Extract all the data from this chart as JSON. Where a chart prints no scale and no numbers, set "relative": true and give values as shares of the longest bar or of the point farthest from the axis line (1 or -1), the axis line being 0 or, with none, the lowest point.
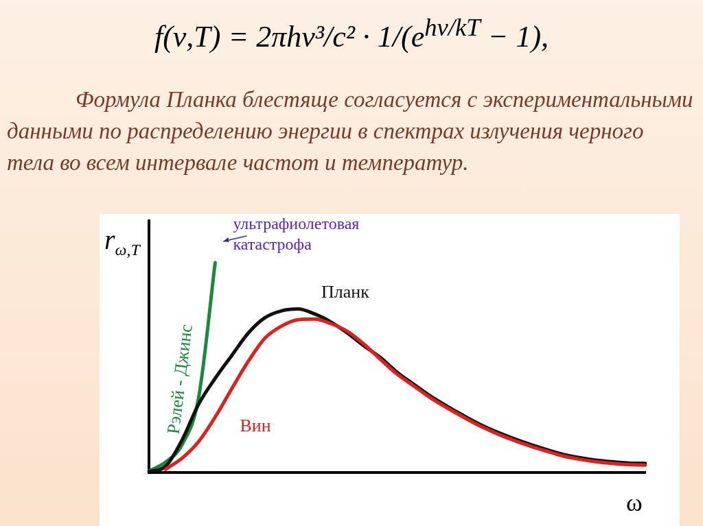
{
  "chart_data": {
    "type": "line",
    "relative": true,
    "title": "f(ν,T) = 2πhν³/c² · 1/(e$^{hν/kT}$ − 1),",
    "subtitle": "Формула Планка блестяще согласуется с экспериментальными данными по распределению энергии в спектрах излучения черного тела во всем интервале частот и температур.",
    "xlabel": "ω",
    "ylabel": "r$_{ω,T}$",
    "annotations": [
      "ультрафиолетовая катастрофа"
    ],
    "categories": [
      null,
      null,
      null,
      null,
      null,
      null,
      null,
      null,
      null,
      null,
      null,
      null,
      null,
      null,
      null,
      null,
      null,
      null,
      null,
      null,
      null,
      null,
      null,
      null,
      null,
      null,
      null,
      null,
      null,
      null,
      null
    ],
    "series": [
      {
        "name": "Рэлей - Джинс",
        "color": "#1a8a3c",
        "values": [
          0.006,
          0.048,
          0.132,
          0.356,
          1,
          null,
          null,
          null,
          null,
          null,
          null,
          null,
          null,
          null,
          null,
          null,
          null,
          null,
          null,
          null,
          null,
          null,
          null,
          null,
          null,
          null,
          null,
          null,
          null,
          null,
          null
        ]
      },
      {
        "name": "Планк",
        "color": "#111111",
        "values": [
          0.003,
          0.028,
          0.154,
          0.325,
          0.448,
          0.557,
          0.664,
          0.737,
          0.77,
          0.779,
          0.756,
          0.717,
          0.664,
          0.603,
          0.547,
          0.477,
          0.42,
          0.364,
          0.316,
          0.271,
          0.229,
          0.193,
          0.162,
          0.134,
          0.109,
          0.086,
          0.07,
          0.058,
          0.05,
          0.044,
          0.042
        ]
      },
      {
        "name": "Вин",
        "color": "#e0201c",
        "values": [
          null,
          0.014,
          0.067,
          0.146,
          0.263,
          0.398,
          0.529,
          0.639,
          0.697,
          0.728,
          0.731,
          0.709,
          0.672,
          0.611,
          0.538,
          0.468,
          0.412,
          0.356,
          0.308,
          0.263,
          0.221,
          0.185,
          0.154,
          0.126,
          0.101,
          0.078,
          0.062,
          0.05,
          0.042,
          0.036,
          0.034
        ]
      }
    ],
    "legend": false,
    "marker": "none",
    "line_style": "solid",
    "grid": false
  }
}
